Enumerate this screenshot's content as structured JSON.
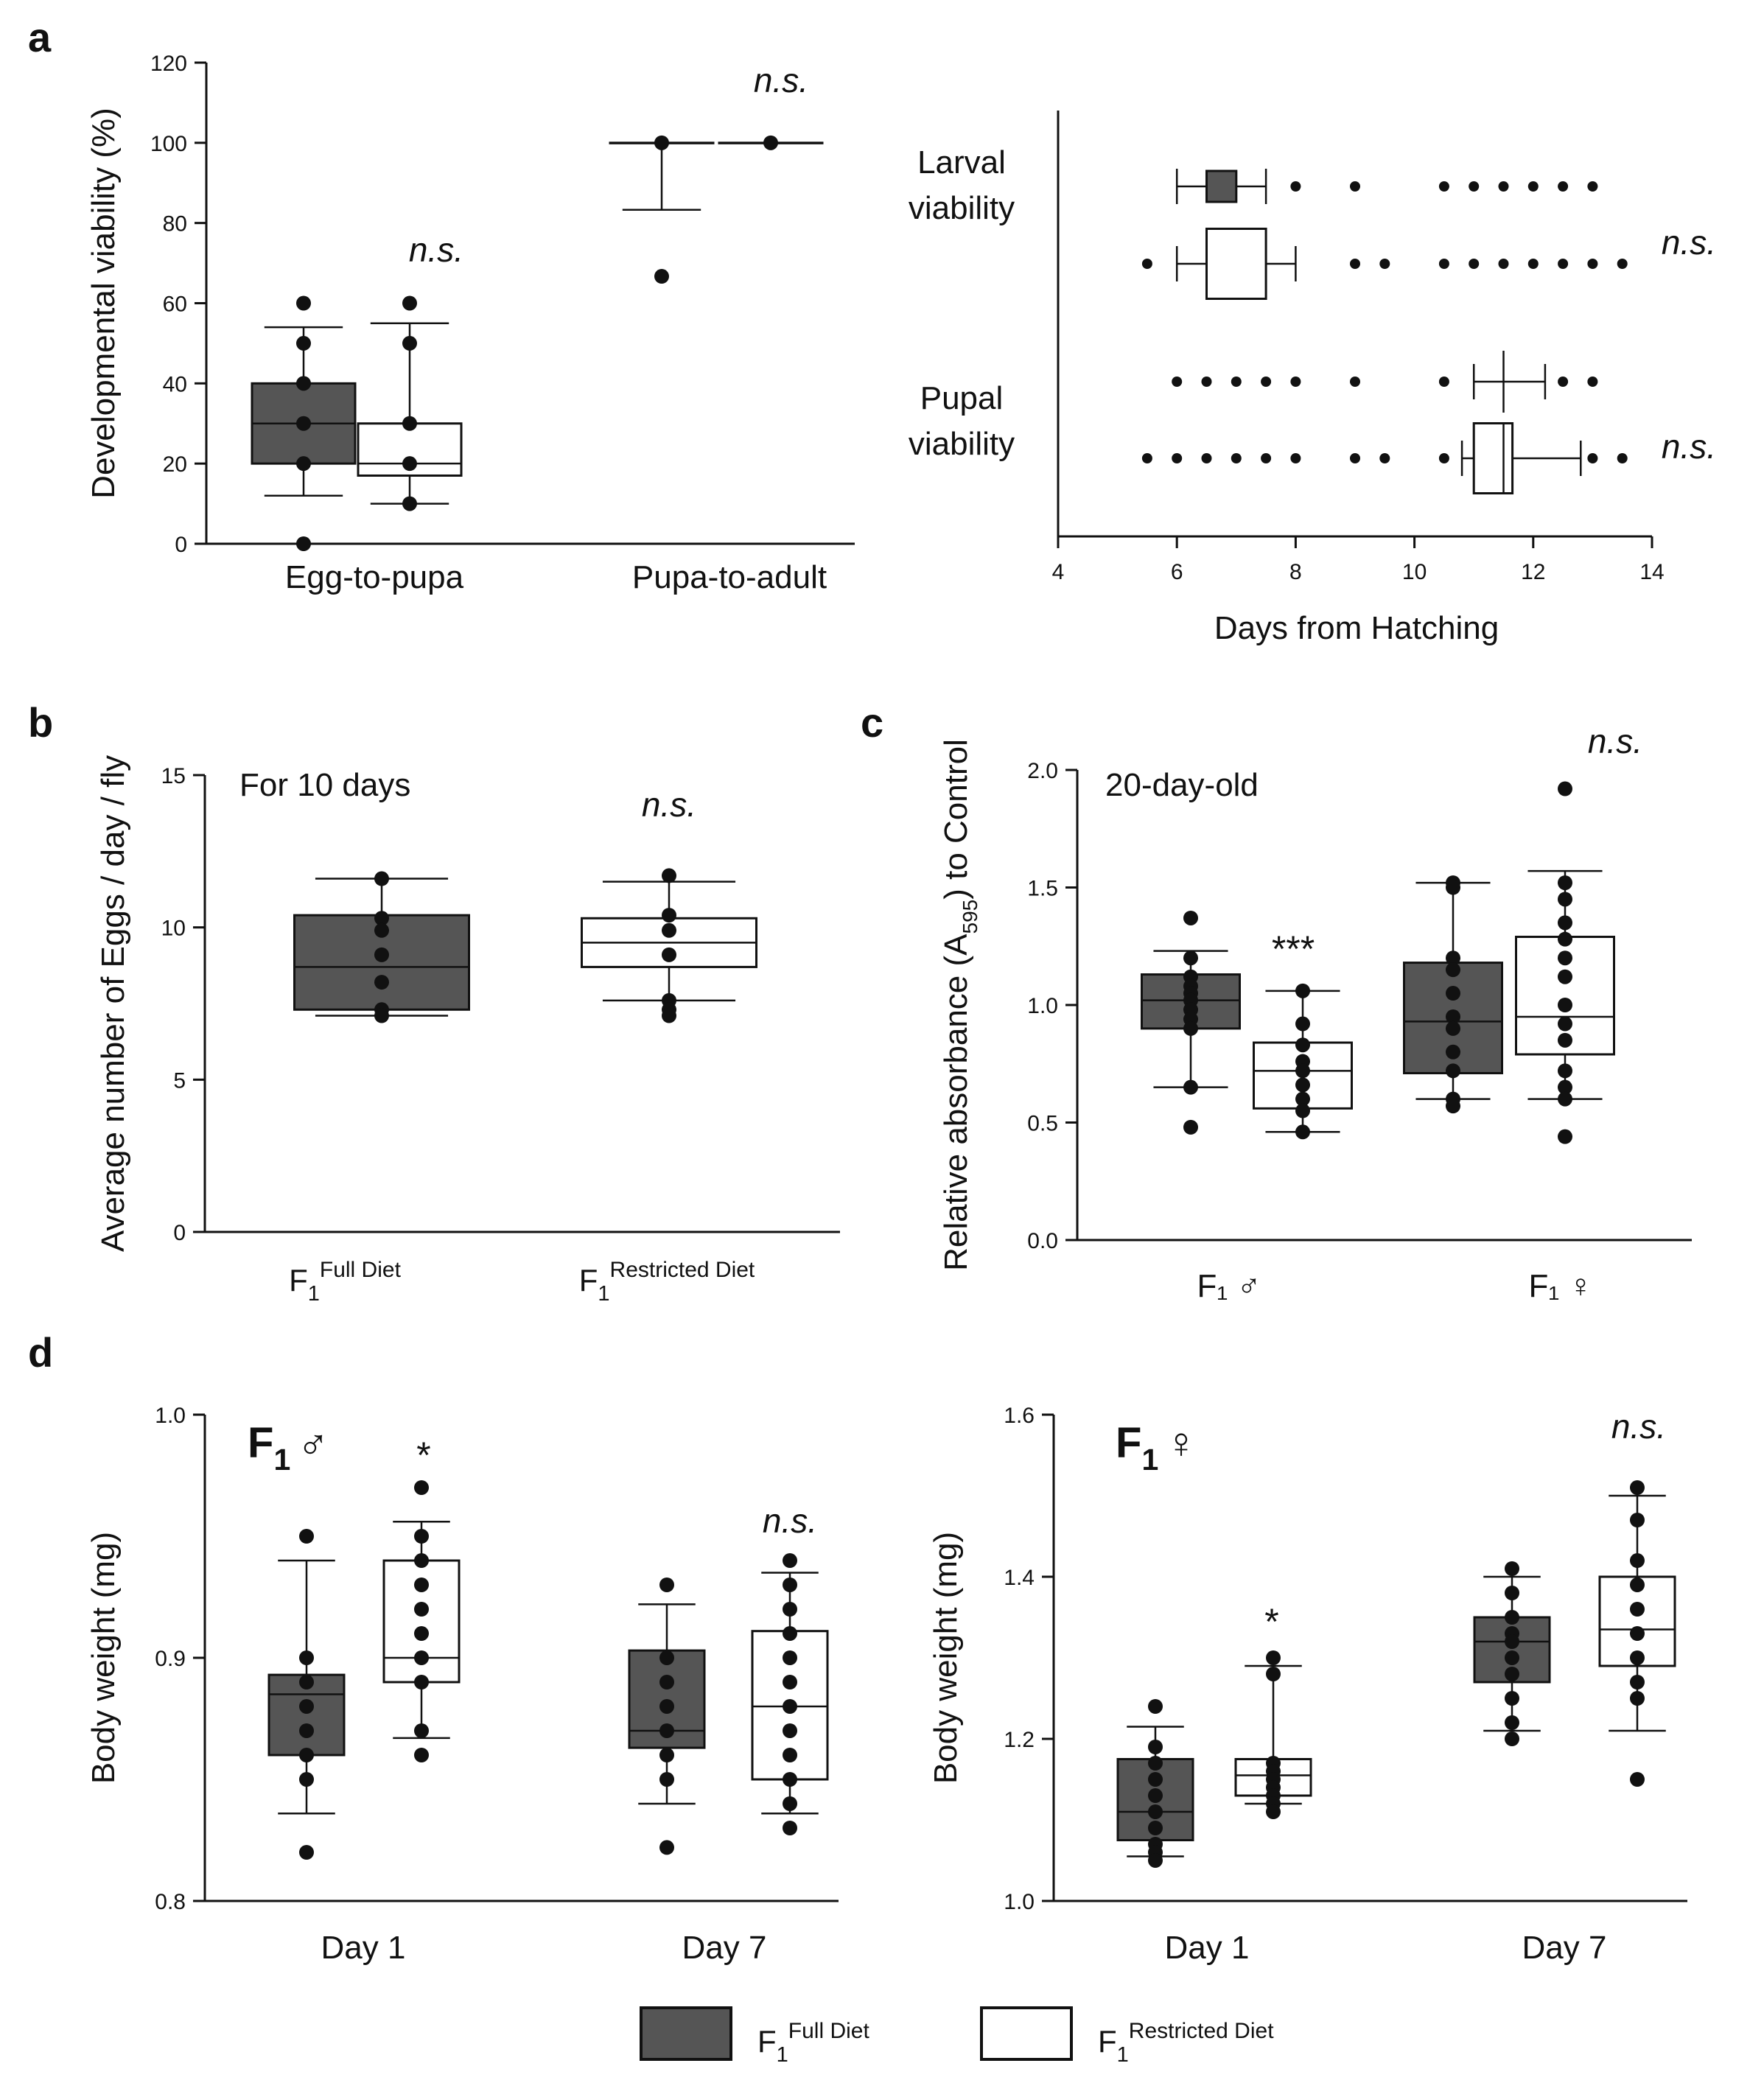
{
  "colors": {
    "full": "#555555",
    "restricted": "#ffffff",
    "ink": "#111111"
  },
  "legend": {
    "full": {
      "base": "F",
      "sub": "1",
      "sup": "Full Diet"
    },
    "restricted": {
      "base": "F",
      "sub": "1",
      "sup": "Restricted Diet"
    }
  },
  "chart_data": [
    {
      "id": "a-left",
      "panel": "a",
      "type": "box",
      "ylabel": "Developmental viability (%)",
      "ylim": [
        0,
        120
      ],
      "yticks": [
        0,
        20,
        40,
        60,
        80,
        100,
        120
      ],
      "categories": [
        "Egg-to-pupa",
        "Pupa-to-adult"
      ],
      "groups": [
        {
          "category": "Egg-to-pupa",
          "label": "n.s.",
          "boxes": [
            {
              "series": "full",
              "q1": 20,
              "median": 30,
              "q3": 40,
              "whisker_low": 12,
              "whisker_high": 54,
              "points": [
                60,
                50,
                40,
                30,
                20,
                0
              ]
            },
            {
              "series": "restricted",
              "q1": 17,
              "median": 20,
              "q3": 30,
              "whisker_low": 10,
              "whisker_high": 55,
              "points": [
                60,
                50,
                30,
                20,
                10
              ]
            }
          ]
        },
        {
          "category": "Pupa-to-adult",
          "label": "n.s.",
          "boxes": [
            {
              "series": "full",
              "q1": 100,
              "median": 100,
              "q3": 100,
              "whisker_low": 83.3,
              "whisker_high": 100,
              "points": [
                100,
                66.7
              ]
            },
            {
              "series": "restricted",
              "q1": 100,
              "median": 100,
              "q3": 100,
              "whisker_low": 100,
              "whisker_high": 100,
              "points": [
                100
              ]
            }
          ]
        }
      ]
    },
    {
      "id": "a-right",
      "panel": "a",
      "type": "box-horizontal",
      "xlabel": "Days from Hatching",
      "xlim": [
        4,
        14
      ],
      "xticks": [
        4,
        6,
        8,
        10,
        12,
        14
      ],
      "rows": [
        {
          "label": [
            "Larval",
            "viability"
          ],
          "ns": "n.s.",
          "boxes": [
            {
              "series": "full",
              "q1": 6.5,
              "median": 7,
              "q3": 7,
              "whisker_low": 6,
              "whisker_high": 7.5,
              "points": [
                8,
                9,
                10.5,
                11,
                11.5,
                12,
                12.5,
                13
              ]
            },
            {
              "series": "restricted",
              "q1": 6.5,
              "median": 7.5,
              "q3": 7.5,
              "whisker_low": 6,
              "whisker_high": 8,
              "points": [
                5.5,
                9,
                9.5,
                10.5,
                11,
                11.5,
                12,
                12.5,
                13,
                13.5
              ]
            }
          ]
        },
        {
          "label": [
            "Pupal",
            "viability"
          ],
          "ns": "n.s.",
          "boxes": [
            {
              "series": "full",
              "q1": 11.5,
              "median": 11.5,
              "q3": 11.5,
              "whisker_low": 11,
              "whisker_high": 12.2,
              "points": [
                6,
                6.5,
                7,
                7.5,
                8,
                9,
                10.5,
                12.5,
                13
              ]
            },
            {
              "series": "restricted",
              "q1": 11,
              "median": 11.5,
              "q3": 11.65,
              "whisker_low": 10.8,
              "whisker_high": 12.8,
              "points": [
                5.5,
                6,
                6.5,
                7,
                7.5,
                8,
                9,
                9.5,
                10.5,
                13,
                13.5
              ]
            }
          ]
        }
      ]
    },
    {
      "id": "b",
      "panel": "b",
      "type": "box",
      "ylabel": "Average number of Eggs / day / fly",
      "ylim": [
        0,
        15
      ],
      "yticks": [
        0,
        5,
        10,
        15
      ],
      "annotation": "For 10 days",
      "categories": [
        {
          "base": "F",
          "sub": "1",
          "sup": "Full Diet"
        },
        {
          "base": "F",
          "sub": "1",
          "sup": "Restricted Diet"
        }
      ],
      "groups": [
        {
          "label": "",
          "boxes": [
            {
              "series": "full",
              "q1": 7.3,
              "median": 8.7,
              "q3": 10.4,
              "whisker_low": 7.1,
              "whisker_high": 11.6,
              "points": [
                11.6,
                10.3,
                9.9,
                9.1,
                8.2,
                7.3,
                7.1
              ]
            }
          ]
        },
        {
          "label": "n.s.",
          "boxes": [
            {
              "series": "restricted",
              "q1": 8.7,
              "median": 9.5,
              "q3": 10.3,
              "whisker_low": 7.6,
              "whisker_high": 11.5,
              "points": [
                11.7,
                10.4,
                9.9,
                9.1,
                7.6,
                7.3,
                7.1
              ]
            }
          ]
        }
      ]
    },
    {
      "id": "c",
      "panel": "c",
      "type": "box",
      "ylabel_parts": [
        "Relative absorbance (A",
        "595",
        ") to Control"
      ],
      "ylim": [
        0,
        2
      ],
      "yticks": [
        "0.0",
        "0.5",
        "1.0",
        "1.5",
        "2.0"
      ],
      "annotation": "20-day-old",
      "categories": [
        "F₁ ♂",
        "F₁ ♀"
      ],
      "groups": [
        {
          "labels": [
            "",
            "***"
          ],
          "boxes": [
            {
              "series": "full",
              "q1": 0.9,
              "median": 1.02,
              "q3": 1.13,
              "whisker_low": 0.65,
              "whisker_high": 1.23,
              "points": [
                1.37,
                1.2,
                1.12,
                1.08,
                1.05,
                1.02,
                0.98,
                0.94,
                0.9,
                0.65,
                0.48
              ]
            },
            {
              "series": "restricted",
              "q1": 0.56,
              "median": 0.72,
              "q3": 0.84,
              "whisker_low": 0.46,
              "whisker_high": 1.06,
              "points": [
                1.06,
                0.92,
                0.83,
                0.76,
                0.72,
                0.66,
                0.6,
                0.55,
                0.46
              ]
            }
          ]
        },
        {
          "labels": [
            "",
            "n.s."
          ],
          "boxes": [
            {
              "series": "full",
              "q1": 0.71,
              "median": 0.93,
              "q3": 1.18,
              "whisker_low": 0.6,
              "whisker_high": 1.52,
              "points": [
                1.52,
                1.5,
                1.2,
                1.15,
                1.05,
                0.95,
                0.9,
                0.8,
                0.72,
                0.6,
                0.57
              ]
            },
            {
              "series": "restricted",
              "q1": 0.79,
              "median": 0.95,
              "q3": 1.29,
              "whisker_low": 0.6,
              "whisker_high": 1.57,
              "points": [
                1.92,
                1.52,
                1.45,
                1.35,
                1.28,
                1.2,
                1.12,
                1.0,
                0.92,
                0.85,
                0.72,
                0.65,
                0.6,
                0.44
              ]
            }
          ]
        }
      ]
    },
    {
      "id": "d-left",
      "panel": "d",
      "type": "box",
      "title": {
        "base": "F",
        "sub": "1",
        "symbol": "♂"
      },
      "ylabel": "Body weight (mg)",
      "ylim": [
        0.8,
        1.0
      ],
      "yticks": [
        "0.8",
        "0.9",
        "1.0"
      ],
      "categories": [
        "Day 1",
        "Day 7"
      ],
      "groups": [
        {
          "labels": [
            "",
            "*"
          ],
          "boxes": [
            {
              "series": "full",
              "q1": 0.86,
              "median": 0.885,
              "q3": 0.893,
              "whisker_low": 0.836,
              "whisker_high": 0.94,
              "points": [
                0.95,
                0.9,
                0.89,
                0.88,
                0.87,
                0.86,
                0.85,
                0.82
              ]
            },
            {
              "series": "restricted",
              "q1": 0.89,
              "median": 0.9,
              "q3": 0.94,
              "whisker_low": 0.867,
              "whisker_high": 0.956,
              "points": [
                0.97,
                0.95,
                0.94,
                0.93,
                0.92,
                0.91,
                0.9,
                0.89,
                0.87,
                0.86
              ]
            }
          ]
        },
        {
          "labels": [
            "",
            "n.s."
          ],
          "boxes": [
            {
              "series": "full",
              "q1": 0.863,
              "median": 0.87,
              "q3": 0.903,
              "whisker_low": 0.84,
              "whisker_high": 0.922,
              "points": [
                0.93,
                0.9,
                0.89,
                0.88,
                0.87,
                0.86,
                0.85,
                0.822
              ]
            },
            {
              "series": "restricted",
              "q1": 0.85,
              "median": 0.88,
              "q3": 0.911,
              "whisker_low": 0.836,
              "whisker_high": 0.935,
              "points": [
                0.94,
                0.93,
                0.92,
                0.91,
                0.9,
                0.89,
                0.88,
                0.87,
                0.86,
                0.85,
                0.84,
                0.83
              ]
            }
          ]
        }
      ]
    },
    {
      "id": "d-right",
      "panel": "d",
      "type": "box",
      "title": {
        "base": "F",
        "sub": "1",
        "symbol": "♀"
      },
      "ylabel": "Body weight (mg)",
      "ylim": [
        1.0,
        1.6
      ],
      "yticks": [
        "1.0",
        "1.2",
        "1.4",
        "1.6"
      ],
      "categories": [
        "Day 1",
        "Day 7"
      ],
      "groups": [
        {
          "labels": [
            "",
            "*"
          ],
          "boxes": [
            {
              "series": "full",
              "q1": 1.075,
              "median": 1.11,
              "q3": 1.175,
              "whisker_low": 1.055,
              "whisker_high": 1.215,
              "points": [
                1.24,
                1.19,
                1.17,
                1.15,
                1.13,
                1.11,
                1.09,
                1.07,
                1.06,
                1.05
              ]
            },
            {
              "series": "restricted",
              "q1": 1.13,
              "median": 1.155,
              "q3": 1.175,
              "whisker_low": 1.12,
              "whisker_high": 1.29,
              "points": [
                1.3,
                1.28,
                1.17,
                1.16,
                1.15,
                1.14,
                1.13,
                1.12,
                1.11
              ]
            }
          ]
        },
        {
          "labels": [
            "",
            "n.s."
          ],
          "boxes": [
            {
              "series": "full",
              "q1": 1.27,
              "median": 1.32,
              "q3": 1.35,
              "whisker_low": 1.21,
              "whisker_high": 1.4,
              "points": [
                1.41,
                1.38,
                1.35,
                1.33,
                1.32,
                1.3,
                1.28,
                1.25,
                1.22,
                1.2
              ]
            },
            {
              "series": "restricted",
              "q1": 1.29,
              "median": 1.335,
              "q3": 1.4,
              "whisker_low": 1.21,
              "whisker_high": 1.5,
              "points": [
                1.51,
                1.47,
                1.42,
                1.39,
                1.36,
                1.33,
                1.3,
                1.27,
                1.25,
                1.15
              ]
            }
          ]
        }
      ]
    }
  ]
}
